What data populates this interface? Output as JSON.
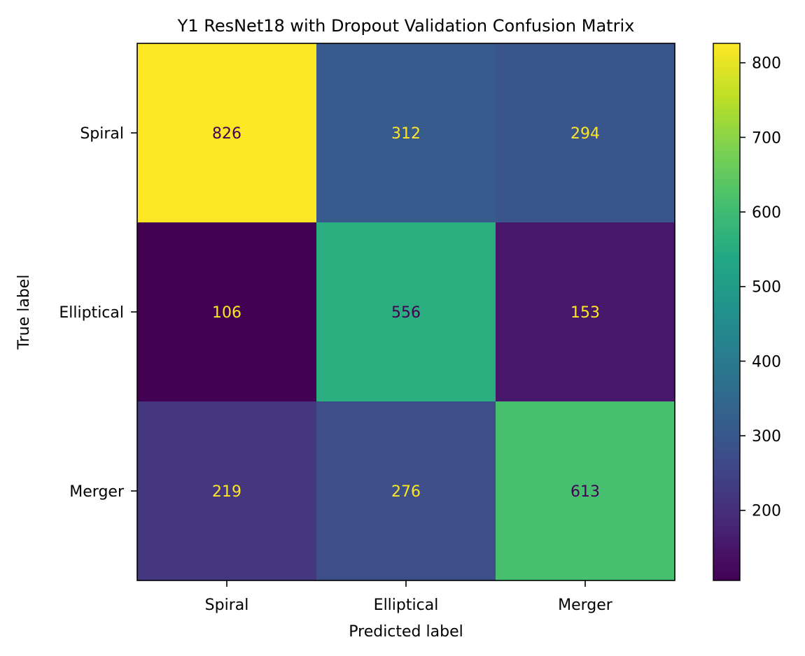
{
  "chart_data": {
    "type": "heatmap",
    "title": "Y1 ResNet18 with Dropout Validation Confusion Matrix",
    "xlabel": "Predicted label",
    "ylabel": "True label",
    "x_categories": [
      "Spiral",
      "Elliptical",
      "Merger"
    ],
    "y_categories": [
      "Spiral",
      "Elliptical",
      "Merger"
    ],
    "values": [
      [
        826,
        312,
        294
      ],
      [
        106,
        556,
        153
      ],
      [
        219,
        276,
        613
      ]
    ],
    "colormap": "viridis",
    "color_range": [
      106,
      826
    ],
    "colorbar_ticks": [
      200,
      300,
      400,
      500,
      600,
      700,
      800
    ],
    "annotation_colors": {
      "on_dark": "#fde725",
      "on_light": "#440154"
    }
  }
}
